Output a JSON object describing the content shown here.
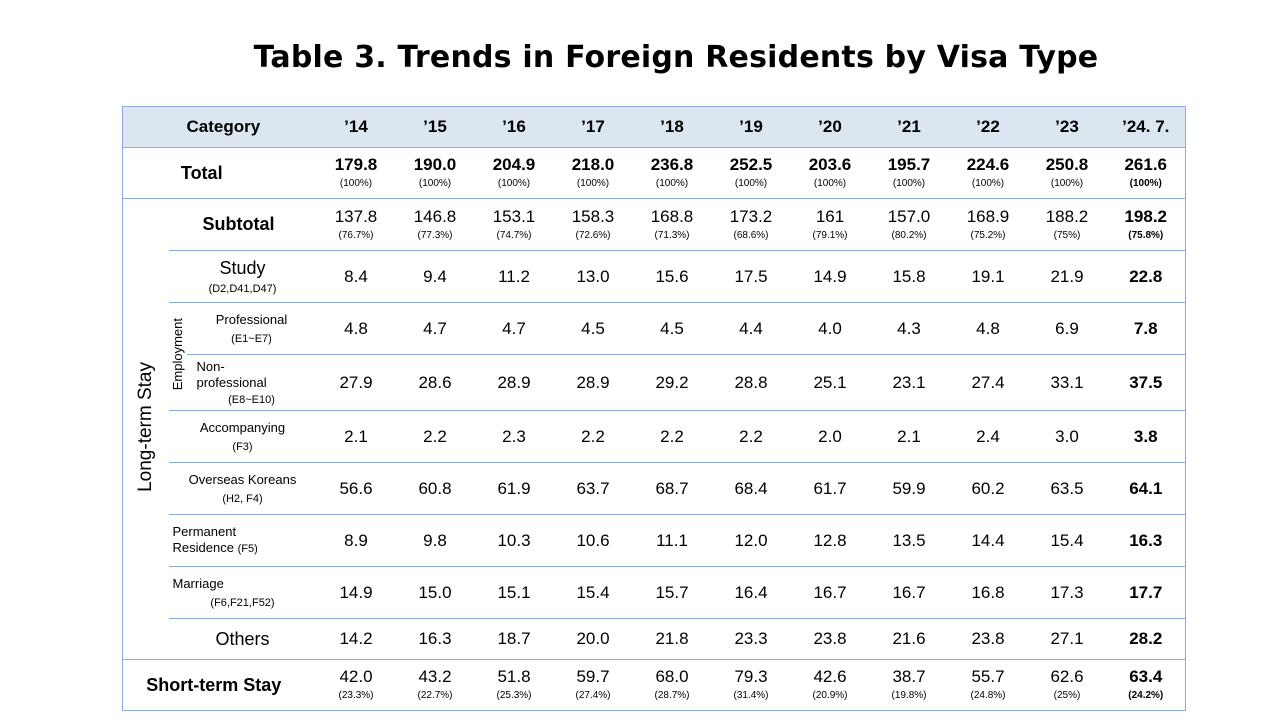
{
  "title": "Table 3. Trends in Foreign Residents by Visa Type",
  "header": {
    "category": "Category",
    "years": [
      "’14",
      "’15",
      "’16",
      "’17",
      "’18",
      "’19",
      "’20",
      "’21",
      "’22",
      "’23",
      "’24. 7."
    ]
  },
  "rows": {
    "total": {
      "label": "Total",
      "values": [
        "179.8",
        "190.0",
        "204.9",
        "218.0",
        "236.8",
        "252.5",
        "203.6",
        "195.7",
        "224.6",
        "250.8",
        "261.6"
      ],
      "pcts": [
        "(100%)",
        "(100%)",
        "(100%)",
        "(100%)",
        "(100%)",
        "(100%)",
        "(100%)",
        "(100%)",
        "(100%)",
        "(100%)",
        "(100%)"
      ]
    },
    "long_term_label": "Long-term Stay",
    "subtotal": {
      "label": "Subtotal",
      "values": [
        "137.8",
        "146.8",
        "153.1",
        "158.3",
        "168.8",
        "173.2",
        "161",
        "157.0",
        "168.9",
        "188.2",
        "198.2"
      ],
      "pcts": [
        "(76.7%)",
        "(77.3%)",
        "(74.7%)",
        "(72.6%)",
        "(71.3%)",
        "(68.6%)",
        "(79.1%)",
        "(80.2%)",
        "(75.2%)",
        "(75%)",
        "(75.8%)"
      ]
    },
    "study": {
      "label": "Study",
      "code": "(D2,D41,D47)",
      "values": [
        "8.4",
        "9.4",
        "11.2",
        "13.0",
        "15.6",
        "17.5",
        "14.9",
        "15.8",
        "19.1",
        "21.9",
        "22.8"
      ]
    },
    "employment_label": "Employment",
    "professional": {
      "label": "Professional",
      "code": "(E1~E7)",
      "values": [
        "4.8",
        "4.7",
        "4.7",
        "4.5",
        "4.5",
        "4.4",
        "4.0",
        "4.3",
        "4.8",
        "6.9",
        "7.8"
      ]
    },
    "non_professional": {
      "label_1": "Non-",
      "label_2": "professional",
      "code": "(E8~E10)",
      "values": [
        "27.9",
        "28.6",
        "28.9",
        "28.9",
        "29.2",
        "28.8",
        "25.1",
        "23.1",
        "27.4",
        "33.1",
        "37.5"
      ]
    },
    "accompanying": {
      "label": "Accompanying",
      "code": "(F3)",
      "values": [
        "2.1",
        "2.2",
        "2.3",
        "2.2",
        "2.2",
        "2.2",
        "2.0",
        "2.1",
        "2.4",
        "3.0",
        "3.8"
      ]
    },
    "overseas_koreans": {
      "label": "Overseas Koreans",
      "code": "(H2, F4)",
      "values": [
        "56.6",
        "60.8",
        "61.9",
        "63.7",
        "68.7",
        "68.4",
        "61.7",
        "59.9",
        "60.2",
        "63.5",
        "64.1"
      ]
    },
    "permanent": {
      "label_1": "Permanent",
      "label_2": "Residence",
      "code": "(F5)",
      "values": [
        "8.9",
        "9.8",
        "10.3",
        "10.6",
        "11.1",
        "12.0",
        "12.8",
        "13.5",
        "14.4",
        "15.4",
        "16.3"
      ]
    },
    "marriage": {
      "label": "Marriage",
      "code": "(F6,F21,F52)",
      "values": [
        "14.9",
        "15.0",
        "15.1",
        "15.4",
        "15.7",
        "16.4",
        "16.7",
        "16.7",
        "16.8",
        "17.3",
        "17.7"
      ]
    },
    "others": {
      "label": "Others",
      "values": [
        "14.2",
        "16.3",
        "18.7",
        "20.0",
        "21.8",
        "23.3",
        "23.8",
        "21.6",
        "23.8",
        "27.1",
        "28.2"
      ]
    },
    "short_term": {
      "label": "Short-term Stay",
      "values": [
        "42.0",
        "43.2",
        "51.8",
        "59.7",
        "68.0",
        "79.3",
        "42.6",
        "38.7",
        "55.7",
        "62.6",
        "63.4"
      ],
      "pcts": [
        "(23.3%)",
        "(22.7%)",
        "(25.3%)",
        "(27.4%)",
        "(28.7%)",
        "(31.4%)",
        "(20.9%)",
        "(19.8%)",
        "(24.8%)",
        "(25%)",
        "(24.2%)"
      ]
    }
  }
}
